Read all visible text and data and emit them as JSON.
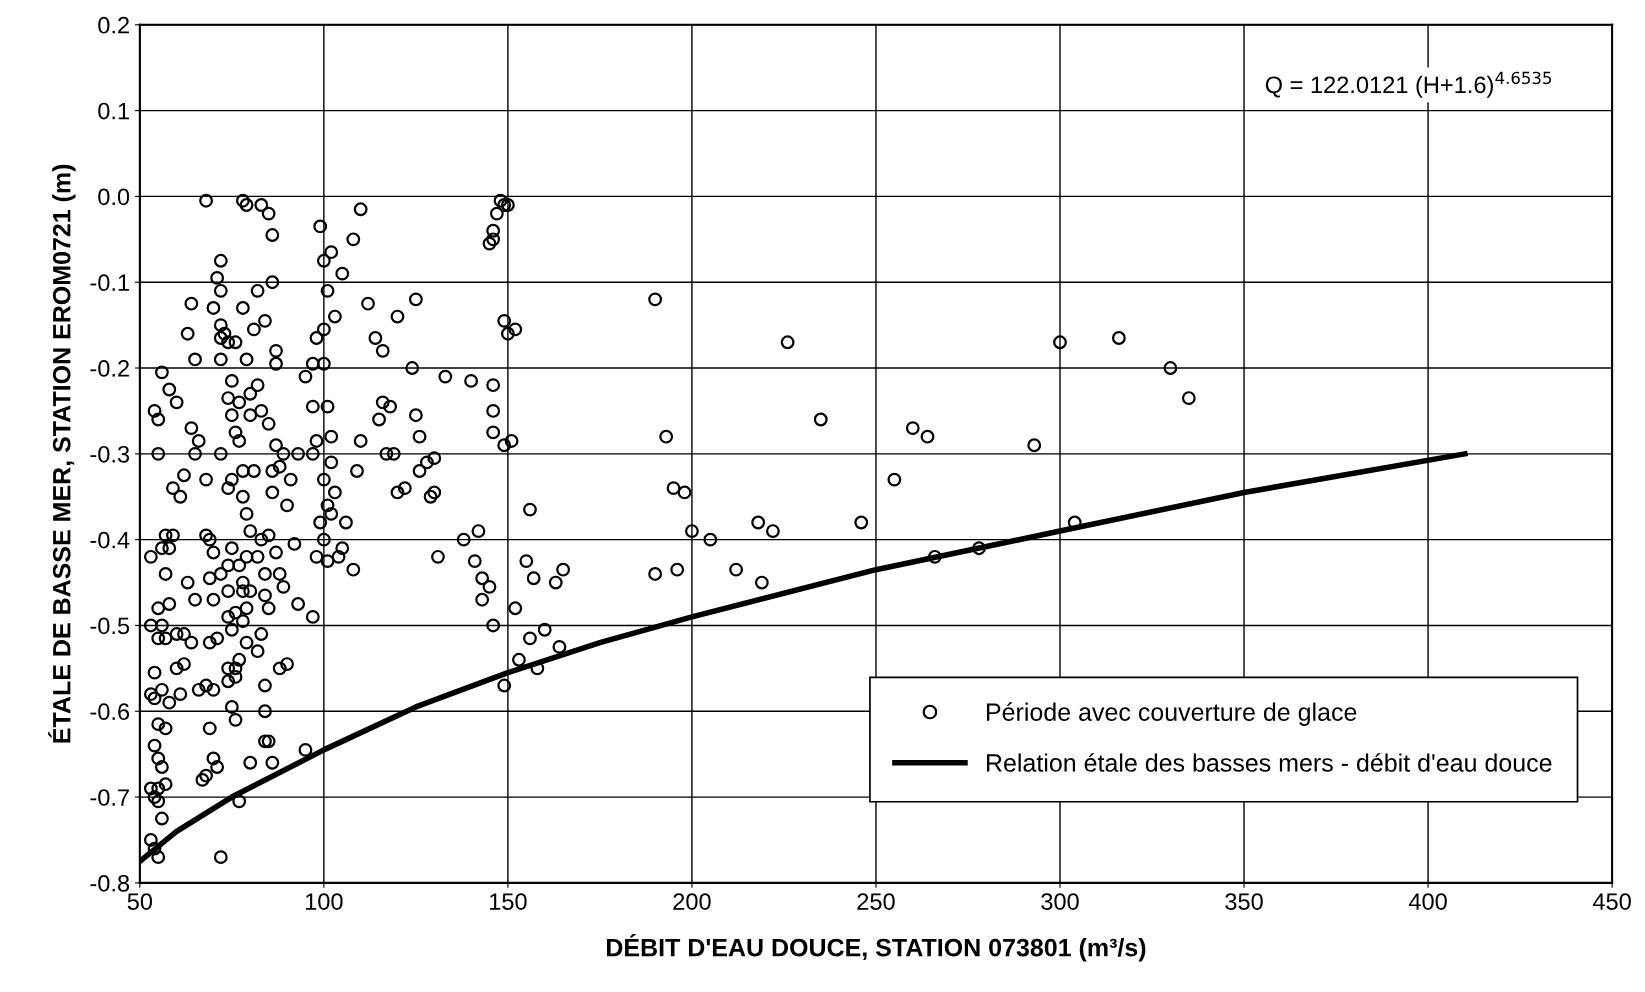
{
  "chart_data": {
    "type": "scatter",
    "xlabel": "DÉBIT D'EAU DOUCE, STATION 073801 (m³/s)",
    "ylabel": "ÉTALE DE BASSE MER, STATION EROM0721 (m)",
    "annotations": [
      "Q = 122.0121 (H+1.6)$^{4.6535}$"
    ],
    "xlim": [
      50,
      450
    ],
    "xticks": [
      50,
      100,
      150,
      200,
      250,
      300,
      350,
      400,
      450
    ],
    "ylim": [
      -0.8,
      0.2
    ],
    "yticks": [
      0.2,
      0.1,
      {
        "value": 0,
        "label": "0.0"
      },
      -0.1,
      -0.2,
      -0.3,
      -0.4,
      -0.5,
      -0.6,
      -0.7,
      -0.8
    ],
    "grid": true,
    "legend": "bottom right",
    "series": [
      {
        "name": "Période avec couverture de glace",
        "marker": "circle",
        "color": "#000000",
        "x": [
          190,
          193,
          195,
          198,
          200,
          205,
          190,
          196,
          212,
          218,
          219,
          222,
          226,
          235,
          246,
          255,
          260,
          264,
          266,
          278,
          293,
          300,
          304,
          316,
          330,
          335,
          148,
          149,
          150,
          147,
          146,
          146,
          145,
          149,
          150,
          152,
          146,
          146,
          146,
          149,
          151,
          140,
          138,
          142,
          141,
          143,
          145,
          143,
          146,
          149,
          152,
          153,
          155,
          156,
          157,
          156,
          158,
          160,
          163,
          164,
          165,
          131,
          133,
          130,
          129,
          130,
          128,
          126,
          125,
          124,
          125,
          126,
          122,
          120,
          119,
          118,
          117,
          120,
          116,
          115,
          116,
          114,
          112,
          110,
          108,
          109,
          110,
          108,
          106,
          105,
          104,
          103,
          103,
          105,
          101,
          102,
          100,
          99,
          100,
          98,
          97,
          100,
          95,
          97,
          101,
          102,
          98,
          97,
          100,
          102,
          101,
          102,
          99,
          100,
          98,
          101,
          97,
          93,
          91,
          90,
          92,
          93,
          95,
          90,
          88,
          86,
          85,
          83,
          78,
          79,
          68,
          86,
          87,
          87,
          84,
          82,
          78,
          79,
          81,
          82,
          80,
          77,
          83,
          85,
          80,
          76,
          77,
          87,
          89,
          86,
          88,
          86,
          78,
          81,
          78,
          79,
          80,
          83,
          85,
          87,
          88,
          89,
          84,
          84,
          85,
          83,
          82,
          79,
          77,
          76,
          78,
          79,
          80,
          77,
          78,
          78,
          79,
          82,
          84,
          85,
          84,
          86,
          80,
          77,
          84,
          72,
          71,
          72,
          70,
          72,
          73,
          72,
          74,
          76,
          72,
          75,
          74,
          75,
          72,
          74,
          75,
          68,
          68,
          69,
          70,
          75,
          74,
          72,
          69,
          70,
          74,
          74,
          76,
          75,
          71,
          69,
          74,
          76,
          74,
          70,
          68,
          75,
          76,
          69,
          70,
          71,
          68,
          67,
          72,
          64,
          63,
          65,
          64,
          65,
          66,
          60,
          58,
          62,
          59,
          61,
          63,
          65,
          62,
          60,
          64,
          66,
          61,
          62,
          60,
          58,
          57,
          56,
          54,
          55,
          55,
          57,
          59,
          58,
          56,
          53,
          57,
          58,
          55,
          56,
          53,
          55,
          57,
          54,
          53,
          54,
          56,
          55,
          54,
          55,
          56,
          55,
          53,
          56,
          54,
          55,
          53,
          55,
          54,
          57
        ],
        "values": [
          -0.12,
          -0.28,
          -0.34,
          -0.345,
          -0.39,
          -0.4,
          -0.44,
          -0.435,
          -0.435,
          -0.38,
          -0.45,
          -0.39,
          -0.17,
          -0.26,
          -0.38,
          -0.33,
          -0.27,
          -0.28,
          -0.42,
          -0.41,
          -0.29,
          -0.17,
          -0.38,
          -0.165,
          -0.2,
          -0.235,
          -0.005,
          -0.01,
          -0.01,
          -0.02,
          -0.04,
          -0.05,
          -0.055,
          -0.145,
          -0.16,
          -0.155,
          -0.22,
          -0.25,
          -0.275,
          -0.29,
          -0.285,
          -0.215,
          -0.4,
          -0.39,
          -0.425,
          -0.445,
          -0.455,
          -0.47,
          -0.5,
          -0.57,
          -0.48,
          -0.54,
          -0.425,
          -0.365,
          -0.445,
          -0.515,
          -0.55,
          -0.505,
          -0.45,
          -0.525,
          -0.435,
          -0.42,
          -0.21,
          -0.345,
          -0.35,
          -0.305,
          -0.31,
          -0.32,
          -0.12,
          -0.2,
          -0.255,
          -0.28,
          -0.34,
          -0.345,
          -0.3,
          -0.245,
          -0.3,
          -0.14,
          -0.24,
          -0.26,
          -0.18,
          -0.165,
          -0.125,
          -0.015,
          -0.05,
          -0.32,
          -0.285,
          -0.435,
          -0.38,
          -0.41,
          -0.42,
          -0.345,
          -0.14,
          -0.09,
          -0.11,
          -0.065,
          -0.075,
          -0.035,
          -0.155,
          -0.165,
          -0.195,
          -0.195,
          -0.21,
          -0.245,
          -0.245,
          -0.28,
          -0.285,
          -0.3,
          -0.33,
          -0.31,
          -0.36,
          -0.37,
          -0.38,
          -0.4,
          -0.42,
          -0.425,
          -0.49,
          -0.3,
          -0.33,
          -0.36,
          -0.405,
          -0.475,
          -0.645,
          -0.545,
          -0.55,
          -0.045,
          -0.02,
          -0.01,
          -0.005,
          -0.01,
          -0.005,
          -0.1,
          -0.18,
          -0.195,
          -0.145,
          -0.11,
          -0.13,
          -0.19,
          -0.155,
          -0.22,
          -0.23,
          -0.24,
          -0.25,
          -0.265,
          -0.255,
          -0.275,
          -0.285,
          -0.29,
          -0.3,
          -0.32,
          -0.315,
          -0.345,
          -0.32,
          -0.32,
          -0.35,
          -0.37,
          -0.39,
          -0.4,
          -0.395,
          -0.415,
          -0.44,
          -0.455,
          -0.44,
          -0.465,
          -0.48,
          -0.51,
          -0.53,
          -0.52,
          -0.54,
          -0.55,
          -0.495,
          -0.48,
          -0.46,
          -0.43,
          -0.45,
          -0.46,
          -0.42,
          -0.42,
          -0.6,
          -0.635,
          -0.635,
          -0.66,
          -0.66,
          -0.705,
          -0.57,
          -0.075,
          -0.095,
          -0.11,
          -0.13,
          -0.15,
          -0.16,
          -0.165,
          -0.17,
          -0.17,
          -0.19,
          -0.215,
          -0.235,
          -0.255,
          -0.3,
          -0.34,
          -0.33,
          -0.33,
          -0.395,
          -0.4,
          -0.415,
          -0.41,
          -0.43,
          -0.44,
          -0.445,
          -0.47,
          -0.46,
          -0.49,
          -0.485,
          -0.505,
          -0.515,
          -0.52,
          -0.55,
          -0.56,
          -0.565,
          -0.575,
          -0.57,
          -0.595,
          -0.61,
          -0.62,
          -0.655,
          -0.665,
          -0.675,
          -0.68,
          -0.77,
          -0.125,
          -0.16,
          -0.19,
          -0.27,
          -0.3,
          -0.285,
          -0.24,
          -0.225,
          -0.325,
          -0.34,
          -0.35,
          -0.45,
          -0.47,
          -0.51,
          -0.51,
          -0.52,
          -0.575,
          -0.58,
          -0.545,
          -0.55,
          -0.59,
          -0.62,
          -0.205,
          -0.25,
          -0.26,
          -0.3,
          -0.395,
          -0.395,
          -0.41,
          -0.41,
          -0.42,
          -0.44,
          -0.475,
          -0.48,
          -0.5,
          -0.5,
          -0.515,
          -0.515,
          -0.555,
          -0.58,
          -0.585,
          -0.575,
          -0.615,
          -0.64,
          -0.655,
          -0.665,
          -0.69,
          -0.69,
          -0.725,
          -0.7,
          -0.705,
          -0.75,
          -0.77,
          -0.76,
          -0.685
        ]
      },
      {
        "name": "Relation étale des basses mers - débit d'eau douce",
        "type": "line",
        "marker": "none",
        "line_style": "solid",
        "color": "#000000",
        "x": [
          50,
          60,
          75,
          100,
          125,
          150,
          175,
          200,
          250,
          300,
          350,
          410
        ],
        "values": [
          -0.775,
          -0.74,
          -0.7,
          -0.645,
          -0.595,
          -0.555,
          -0.52,
          -0.49,
          -0.435,
          -0.39,
          -0.345,
          -0.3
        ]
      }
    ]
  }
}
